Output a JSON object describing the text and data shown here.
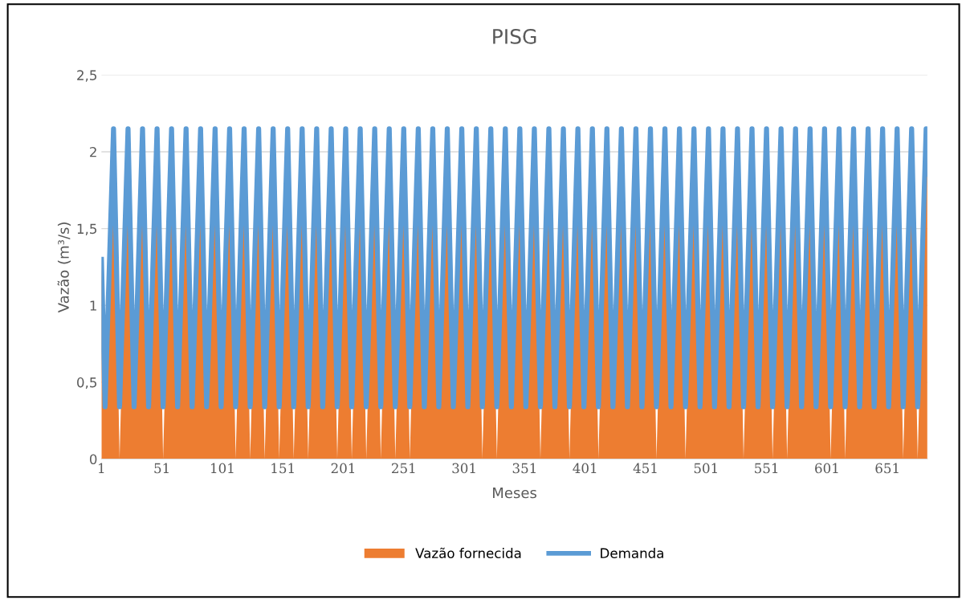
{
  "chart_data": {
    "type": "line",
    "title": "PISG",
    "xlabel": "Meses",
    "ylabel": "Vazão (m³/s)",
    "x": [
      1,
      4,
      11,
      16,
      23,
      28,
      35,
      40,
      47,
      52,
      59,
      64,
      71,
      76,
      83,
      88,
      95,
      100,
      107,
      112,
      119,
      124,
      131,
      136,
      143,
      148,
      155,
      160,
      167,
      172,
      179,
      184,
      191,
      196,
      203,
      208,
      215,
      220,
      227,
      232,
      239,
      244,
      251,
      256,
      263,
      268,
      275,
      280,
      287,
      292,
      299,
      304,
      311,
      316,
      323,
      328,
      335,
      340,
      347,
      352,
      359,
      364,
      371,
      376,
      383,
      388,
      395,
      400,
      407,
      412,
      419,
      424,
      431,
      436,
      443,
      448,
      455,
      460,
      467,
      472,
      479,
      484,
      491,
      496,
      503,
      508,
      515,
      520,
      527,
      532,
      539,
      544,
      551,
      556,
      563,
      568,
      575,
      580,
      587,
      592,
      599,
      604,
      611,
      616,
      623,
      628,
      635,
      640,
      647,
      652,
      659,
      664,
      671,
      676,
      683,
      684
    ],
    "series": [
      {
        "name": "Vazão fornecida",
        "type": "area",
        "color": "#ed7d31",
        "values": [
          1.3,
          0.34,
          2.15,
          0,
          2.15,
          0.34,
          2.15,
          0.34,
          2.15,
          0,
          2.15,
          0.34,
          2.15,
          0.34,
          2.15,
          0.34,
          2.15,
          0.34,
          2.15,
          0,
          2.15,
          0,
          2.15,
          0,
          2.15,
          0,
          2.15,
          0,
          2.15,
          0,
          2.15,
          0.34,
          2.15,
          0,
          2.15,
          0,
          2.15,
          0,
          2.15,
          0,
          2.15,
          0,
          2.15,
          0,
          2.15,
          0.34,
          2.15,
          0.34,
          2.15,
          0.34,
          2.15,
          0.34,
          2.15,
          0,
          2.15,
          0,
          2.15,
          0.34,
          2.15,
          0.34,
          2.15,
          0,
          2.15,
          0.34,
          2.15,
          0,
          2.15,
          0.34,
          2.15,
          0,
          2.15,
          0.34,
          2.15,
          0.34,
          2.15,
          0.34,
          2.15,
          0,
          2.15,
          0.34,
          2.15,
          0,
          2.15,
          0.34,
          2.15,
          0.34,
          2.15,
          0.34,
          2.15,
          0,
          2.15,
          0.34,
          2.15,
          0,
          2.15,
          0,
          2.15,
          0.34,
          2.15,
          0.34,
          2.15,
          0,
          2.15,
          0,
          2.15,
          0.34,
          2.15,
          0.34,
          2.15,
          0.34,
          2.15,
          0,
          2.15,
          0,
          2.15,
          1.85
        ]
      },
      {
        "name": "Demanda",
        "color": "#5b9bd5",
        "values": [
          1.3,
          0.34,
          2.15,
          0.34,
          2.15,
          0.34,
          2.15,
          0.34,
          2.15,
          0.34,
          2.15,
          0.34,
          2.15,
          0.34,
          2.15,
          0.34,
          2.15,
          0.34,
          2.15,
          0.34,
          2.15,
          0.34,
          2.15,
          0.34,
          2.15,
          0.34,
          2.15,
          0.34,
          2.15,
          0.34,
          2.15,
          0.34,
          2.15,
          0.34,
          2.15,
          0.34,
          2.15,
          0.34,
          2.15,
          0.34,
          2.15,
          0.34,
          2.15,
          0.34,
          2.15,
          0.34,
          2.15,
          0.34,
          2.15,
          0.34,
          2.15,
          0.34,
          2.15,
          0.34,
          2.15,
          0.34,
          2.15,
          0.34,
          2.15,
          0.34,
          2.15,
          0.34,
          2.15,
          0.34,
          2.15,
          0.34,
          2.15,
          0.34,
          2.15,
          0.34,
          2.15,
          0.34,
          2.15,
          0.34,
          2.15,
          0.34,
          2.15,
          0.34,
          2.15,
          0.34,
          2.15,
          0.34,
          2.15,
          0.34,
          2.15,
          0.34,
          2.15,
          0.34,
          2.15,
          0.34,
          2.15,
          0.34,
          2.15,
          0.34,
          2.15,
          0.34,
          2.15,
          0.34,
          2.15,
          0.34,
          2.15,
          0.34,
          2.15,
          0.34,
          2.15,
          0.34,
          2.15,
          0.34,
          2.15,
          0.34,
          2.15,
          0.34,
          2.15,
          0.34,
          2.15,
          1.85
        ]
      }
    ],
    "xlim": [
      1,
      684
    ],
    "xticks": [
      1,
      51,
      101,
      151,
      201,
      251,
      301,
      351,
      401,
      451,
      501,
      551,
      601,
      651
    ],
    "ylim": [
      0,
      2.5
    ],
    "yticks": [
      0,
      {
        "value": 0.5,
        "label": "0,5"
      },
      1,
      {
        "value": 1.5,
        "label": "1,5"
      },
      2,
      {
        "value": 2.5,
        "label": "2,5"
      }
    ],
    "grid": "y",
    "legend": "bottom"
  }
}
